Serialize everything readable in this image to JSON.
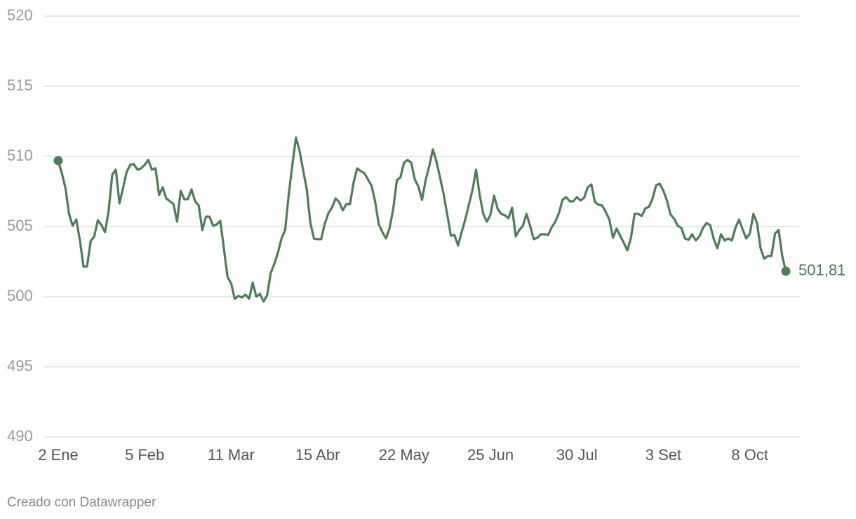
{
  "chart_data": {
    "type": "line",
    "source": "Creado con Datawrapper",
    "color": "#4f7b58",
    "grid": true,
    "ylim": [
      490,
      520
    ],
    "yticks": [
      490,
      495,
      500,
      505,
      510,
      515,
      520
    ],
    "end_markers": true,
    "categories": [
      "2 Ene",
      null,
      null,
      null,
      null,
      null,
      null,
      null,
      null,
      null,
      null,
      null,
      null,
      null,
      null,
      null,
      null,
      null,
      null,
      null,
      null,
      null,
      null,
      null,
      "5 Feb",
      null,
      null,
      null,
      null,
      null,
      null,
      null,
      null,
      null,
      null,
      null,
      null,
      null,
      null,
      null,
      null,
      null,
      null,
      null,
      null,
      null,
      null,
      null,
      "11 Mar",
      null,
      null,
      null,
      null,
      null,
      null,
      null,
      null,
      null,
      null,
      null,
      null,
      null,
      null,
      null,
      null,
      null,
      null,
      null,
      null,
      null,
      null,
      null,
      "15 Abr",
      null,
      null,
      null,
      null,
      null,
      null,
      null,
      null,
      null,
      null,
      null,
      null,
      null,
      null,
      null,
      null,
      null,
      null,
      null,
      null,
      null,
      null,
      null,
      "22 May",
      null,
      null,
      null,
      null,
      null,
      null,
      null,
      null,
      null,
      null,
      null,
      null,
      null,
      null,
      null,
      null,
      null,
      null,
      null,
      null,
      null,
      null,
      null,
      "25 Jun",
      null,
      null,
      null,
      null,
      null,
      null,
      null,
      null,
      null,
      null,
      null,
      null,
      null,
      null,
      null,
      null,
      null,
      null,
      null,
      null,
      null,
      null,
      null,
      "30 Jul",
      null,
      null,
      null,
      null,
      null,
      null,
      null,
      null,
      null,
      null,
      null,
      null,
      null,
      null,
      null,
      null,
      null,
      null,
      null,
      null,
      null,
      null,
      null,
      "3 Set",
      null,
      null,
      null,
      null,
      null,
      null,
      null,
      null,
      null,
      null,
      null,
      null,
      null,
      null,
      null,
      null,
      null,
      null,
      null,
      null,
      null,
      null,
      null,
      "8 Oct",
      null,
      null,
      null,
      null,
      null,
      null,
      null,
      null,
      null,
      null
    ],
    "values": [
      509.7,
      508.8,
      507.75,
      505.9,
      505.05,
      505.5,
      504.05,
      502.15,
      502.15,
      503.95,
      504.3,
      505.45,
      505.1,
      504.6,
      506.15,
      508.7,
      509.05,
      506.65,
      507.75,
      508.9,
      509.4,
      509.45,
      509.05,
      509.15,
      509.4,
      509.75,
      509.05,
      509.15,
      507.25,
      507.8,
      507.0,
      506.8,
      506.6,
      505.35,
      507.55,
      506.95,
      506.95,
      507.65,
      506.8,
      506.5,
      504.75,
      505.7,
      505.7,
      505.05,
      505.15,
      505.4,
      503.4,
      501.4,
      500.95,
      499.85,
      500.05,
      499.95,
      500.15,
      499.85,
      501.0,
      500.0,
      500.2,
      499.65,
      500.1,
      501.7,
      502.35,
      503.15,
      504.15,
      504.75,
      507.3,
      509.4,
      511.35,
      510.4,
      509.0,
      507.65,
      505.25,
      504.15,
      504.1,
      504.1,
      505.2,
      505.95,
      506.35,
      507.0,
      506.75,
      506.15,
      506.6,
      506.6,
      508.15,
      509.15,
      508.95,
      508.8,
      508.35,
      507.9,
      506.75,
      505.15,
      504.6,
      504.15,
      504.9,
      506.25,
      508.3,
      508.5,
      509.55,
      509.75,
      509.55,
      508.35,
      507.85,
      506.9,
      508.3,
      509.3,
      510.5,
      509.65,
      508.5,
      507.3,
      505.85,
      504.35,
      504.4,
      503.65,
      504.6,
      505.5,
      506.55,
      507.6,
      509.05,
      507.25,
      505.9,
      505.35,
      505.85,
      507.2,
      506.25,
      505.9,
      505.8,
      505.6,
      506.35,
      504.3,
      504.75,
      505.05,
      505.9,
      505.05,
      504.1,
      504.2,
      504.45,
      504.45,
      504.4,
      504.95,
      505.35,
      505.95,
      506.9,
      507.1,
      506.8,
      506.8,
      507.1,
      506.85,
      507.05,
      507.8,
      508.0,
      506.75,
      506.55,
      506.5,
      506.05,
      505.5,
      504.2,
      504.85,
      504.35,
      503.85,
      503.3,
      504.2,
      505.9,
      505.9,
      505.75,
      506.3,
      506.4,
      507.0,
      507.95,
      508.05,
      507.55,
      506.85,
      505.85,
      505.55,
      505.05,
      504.9,
      504.15,
      504.05,
      504.45,
      504.0,
      504.3,
      504.9,
      505.25,
      505.1,
      504.1,
      503.45,
      504.45,
      504.0,
      504.15,
      504.0,
      504.9,
      505.5,
      504.8,
      504.15,
      504.5,
      505.9,
      505.25,
      503.45,
      502.7,
      502.9,
      502.9,
      504.5,
      504.75,
      502.9,
      501.81
    ],
    "value_labels": [
      null,
      null,
      null,
      null,
      null,
      null,
      null,
      null,
      null,
      null,
      null,
      null,
      null,
      null,
      null,
      null,
      null,
      null,
      null,
      null,
      null,
      null,
      null,
      null,
      null,
      null,
      null,
      null,
      null,
      null,
      null,
      null,
      null,
      null,
      null,
      null,
      null,
      null,
      null,
      null,
      null,
      null,
      null,
      null,
      null,
      null,
      null,
      null,
      null,
      null,
      null,
      null,
      null,
      null,
      null,
      null,
      null,
      null,
      null,
      null,
      null,
      null,
      null,
      null,
      null,
      null,
      null,
      null,
      null,
      null,
      null,
      null,
      null,
      null,
      null,
      null,
      null,
      null,
      null,
      null,
      null,
      null,
      null,
      null,
      null,
      null,
      null,
      null,
      null,
      null,
      null,
      null,
      null,
      null,
      null,
      null,
      null,
      null,
      null,
      null,
      null,
      null,
      null,
      null,
      null,
      null,
      null,
      null,
      null,
      null,
      null,
      null,
      null,
      null,
      null,
      null,
      null,
      null,
      null,
      null,
      null,
      null,
      null,
      null,
      null,
      null,
      null,
      null,
      null,
      null,
      null,
      null,
      null,
      null,
      null,
      null,
      null,
      null,
      null,
      null,
      null,
      null,
      null,
      null,
      null,
      null,
      null,
      null,
      null,
      null,
      null,
      null,
      null,
      null,
      null,
      null,
      null,
      null,
      null,
      null,
      null,
      null,
      null,
      null,
      null,
      null,
      null,
      null,
      null,
      null,
      null,
      null,
      null,
      null,
      null,
      null,
      null,
      null,
      null,
      null,
      null,
      null,
      null,
      null,
      null,
      null,
      null,
      null,
      null,
      null,
      null,
      null,
      null,
      null,
      null,
      null,
      null,
      null,
      null,
      null,
      null,
      null,
      "501,81"
    ]
  }
}
